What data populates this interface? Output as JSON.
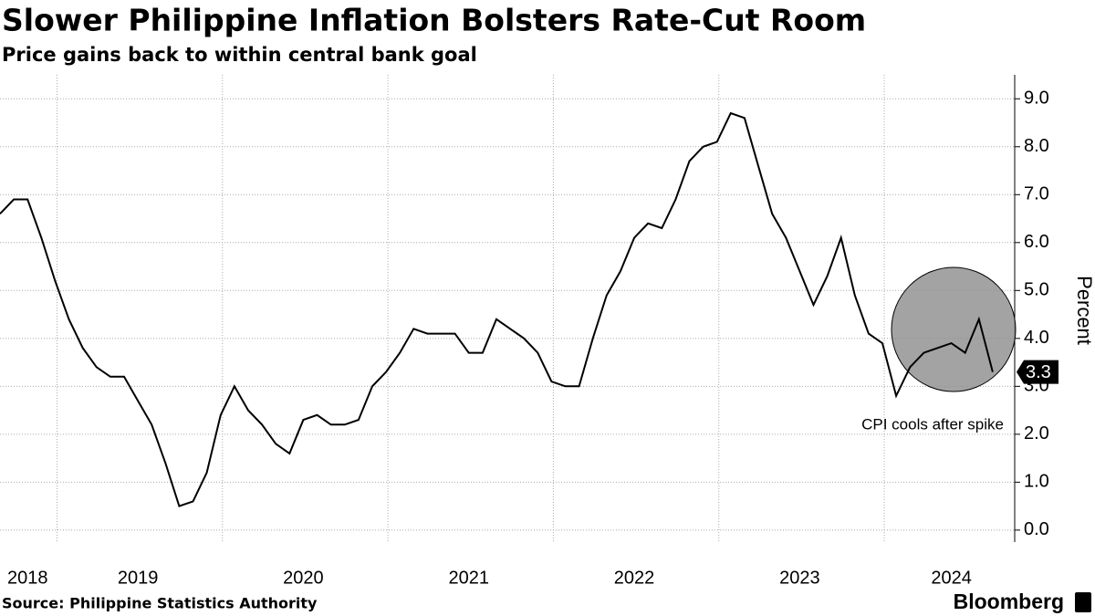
{
  "chart_data": {
    "type": "line",
    "title": "Slower Philippine Inflation Bolsters Rate-Cut Room",
    "subtitle": "Price gains back to within central bank goal",
    "source": "Source: Philippine Statistics Authority",
    "logo": "Bloomberg",
    "y_label": "Percent",
    "annotation": "CPI cools after spike",
    "color": "#000000",
    "categories": [
      null,
      null,
      "2018",
      null,
      null,
      null,
      null,
      null,
      null,
      null,
      "2019",
      null,
      null,
      null,
      null,
      null,
      null,
      null,
      null,
      null,
      null,
      null,
      "2020",
      null,
      null,
      null,
      null,
      null,
      null,
      null,
      null,
      null,
      null,
      null,
      "2021",
      null,
      null,
      null,
      null,
      null,
      null,
      null,
      null,
      null,
      null,
      null,
      "2022",
      null,
      null,
      null,
      null,
      null,
      null,
      null,
      null,
      null,
      null,
      null,
      "2023",
      null,
      null,
      null,
      null,
      null,
      null,
      null,
      null,
      null,
      null,
      "2024",
      null,
      null,
      null
    ],
    "values": [
      6.6,
      6.9,
      6.9,
      6.1,
      5.2,
      4.4,
      3.8,
      3.4,
      3.2,
      3.2,
      2.7,
      2.2,
      1.4,
      0.5,
      0.6,
      1.2,
      2.4,
      3.0,
      2.5,
      2.2,
      1.8,
      1.6,
      2.3,
      2.4,
      2.2,
      2.2,
      2.3,
      3.0,
      3.3,
      3.7,
      4.2,
      4.1,
      4.1,
      4.1,
      3.7,
      3.7,
      4.4,
      4.2,
      4.0,
      3.7,
      3.1,
      3.0,
      3.0,
      4.0,
      4.9,
      5.4,
      6.1,
      6.4,
      6.3,
      6.9,
      7.7,
      8.0,
      8.1,
      8.7,
      8.6,
      7.6,
      6.6,
      6.1,
      5.4,
      4.7,
      5.3,
      6.1,
      4.9,
      4.1,
      3.9,
      2.8,
      3.4,
      3.7,
      3.8,
      3.9,
      3.7,
      4.4,
      3.3
    ],
    "ylim": [
      -0.25,
      9.5
    ],
    "yticks": [
      {
        "value": 0,
        "label": "0.0"
      },
      {
        "value": 1,
        "label": "1.0"
      },
      {
        "value": 2,
        "label": "2.0"
      },
      {
        "value": 3,
        "label": "3.0"
      },
      {
        "value": 4,
        "label": "4.0"
      },
      {
        "value": 5,
        "label": "5.0"
      },
      {
        "value": 6,
        "label": "6.0"
      },
      {
        "value": 7,
        "label": "7.0"
      },
      {
        "value": 8,
        "label": "8.0"
      },
      {
        "value": 9,
        "label": "9.0"
      }
    ],
    "grid": true
  }
}
